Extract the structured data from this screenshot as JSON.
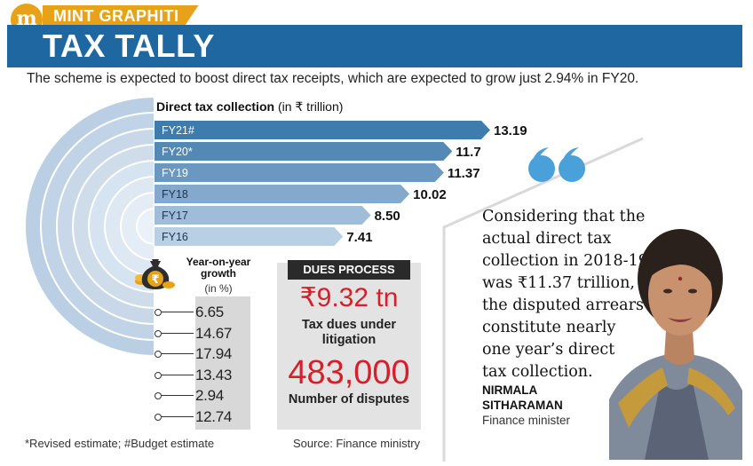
{
  "header": {
    "logo_letter": "m",
    "brand": "MINT GRAPHITI",
    "title": "TAX TALLY",
    "subtitle": "The scheme is expected to boost direct tax receipts, which are expected to grow just 2.94% in FY20."
  },
  "chart_data": {
    "type": "bar",
    "title": "Direct tax collection",
    "unit": "(in ₹ trillion)",
    "categories": [
      "FY21#",
      "FY20*",
      "FY19",
      "FY18",
      "FY17",
      "FY16"
    ],
    "values": [
      13.19,
      11.7,
      11.37,
      10.02,
      8.5,
      7.41
    ],
    "value_labels": [
      "13.19",
      "11.7",
      "11.37",
      "10.02",
      "8.50",
      "7.41"
    ],
    "orientation": "horizontal",
    "colors": [
      "#3f7cae",
      "#5489b6",
      "#6b98c0",
      "#84a9cc",
      "#9fbcd9",
      "#b9cfe4"
    ]
  },
  "growth": {
    "title": "Year-on-year growth",
    "unit": "(in %)",
    "values": [
      "6.65",
      "14.67",
      "17.94",
      "13.43",
      "2.94",
      "12.74"
    ]
  },
  "dues": {
    "heading": "DUES PROCESS",
    "amount": "₹9.32 tn",
    "amount_label": "Tax dues under litigation",
    "count": "483,000",
    "count_label": "Number of disputes"
  },
  "footer": {
    "footnote": "*Revised estimate; #Budget estimate",
    "source": "Source: Finance ministry"
  },
  "quote": {
    "lines": [
      "Considering that the",
      "actual direct tax",
      "collection in 2018-19",
      "was ₹11.37 trillion,",
      "the disputed arrears",
      "constitute nearly",
      "one year’s direct",
      "tax collection."
    ],
    "name_line1": "NIRMALA",
    "name_line2": "SITHARAMAN",
    "role": "Finance minister"
  },
  "colors": {
    "accent": "#e8a21a",
    "title_band": "#1e67a0",
    "highlight_red": "#d4202a",
    "quote_teal": "#4aa0d8"
  }
}
